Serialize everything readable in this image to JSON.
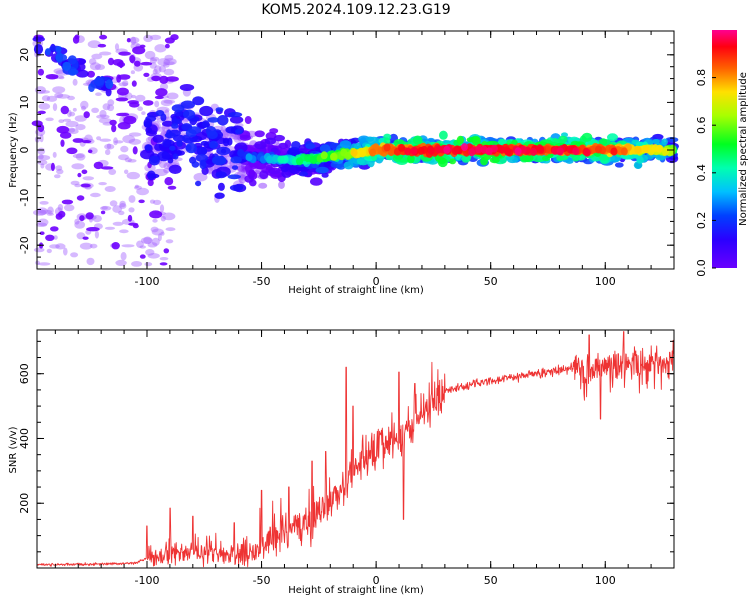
{
  "figure_title": "KOM5.2024.109.12.23.G19",
  "colors": {
    "snr_line": "#ee3333",
    "axes": "#000000"
  },
  "colormap_name": "rainbow",
  "chart_data": [
    {
      "type": "heatmap",
      "xlabel": "Height of straight line (km)",
      "ylabel": "Frequency (Hz)",
      "xlim": [
        -148,
        130
      ],
      "ylim": [
        -25,
        25
      ],
      "x_ticks": [
        -100,
        -50,
        0,
        50,
        100
      ],
      "x_tick_labels": [
        "-100",
        "-50",
        "0",
        "50",
        "100"
      ],
      "y_ticks": [
        -20,
        -10,
        0,
        10,
        20
      ],
      "y_tick_labels": [
        "-20",
        "-10",
        "0",
        "10",
        "20"
      ],
      "description_of_pattern": [
        {
          "x": -148,
          "freq": 22,
          "amp": 0.2
        },
        {
          "x": -140,
          "freq": 20,
          "amp": 0.25
        },
        {
          "x": -132,
          "freq": 17,
          "amp": 0.2
        },
        {
          "x": -120,
          "freq": 14,
          "amp": 0.2
        },
        {
          "x": -100,
          "freq": 2,
          "amp": 0.2
        },
        {
          "x": -80,
          "freq": 3,
          "amp": 0.2
        },
        {
          "x": -60,
          "freq": -1,
          "amp": 0.2
        },
        {
          "x": -45,
          "freq": -2,
          "amp": 0.3
        },
        {
          "x": -30,
          "freq": -2,
          "amp": 0.45
        },
        {
          "x": -15,
          "freq": -1,
          "amp": 0.55
        },
        {
          "x": 0,
          "freq": 0,
          "amp": 0.8
        },
        {
          "x": 25,
          "freq": 0,
          "amp": 0.9
        },
        {
          "x": 60,
          "freq": 0,
          "amp": 0.9
        },
        {
          "x": 100,
          "freq": 0,
          "amp": 0.85
        },
        {
          "x": 130,
          "freq": 0,
          "amp": 0.6
        }
      ],
      "colorbar": {
        "label": "Normalized spectral amplitude",
        "range": [
          0,
          1
        ],
        "ticks": [
          0.0,
          0.2,
          0.4,
          0.6,
          0.8
        ],
        "tick_labels": [
          "0.0",
          "0.2",
          "0.4",
          "0.6",
          "0.8"
        ]
      }
    },
    {
      "type": "line",
      "xlabel": "Height of straight line (km)",
      "ylabel": "SNR (v/v)",
      "xlim": [
        -148,
        130
      ],
      "ylim": [
        0,
        735
      ],
      "x_ticks": [
        -100,
        -50,
        0,
        50,
        100
      ],
      "x_tick_labels": [
        "-100",
        "-50",
        "0",
        "50",
        "100"
      ],
      "y_ticks": [
        200,
        400,
        600
      ],
      "y_tick_labels": [
        "200",
        "400",
        "600"
      ],
      "trend": [
        {
          "x": -148,
          "y": 10
        },
        {
          "x": -120,
          "y": 12
        },
        {
          "x": -105,
          "y": 15
        },
        {
          "x": -100,
          "y": 30
        },
        {
          "x": -85,
          "y": 45
        },
        {
          "x": -70,
          "y": 45
        },
        {
          "x": -60,
          "y": 25
        },
        {
          "x": -50,
          "y": 75
        },
        {
          "x": -40,
          "y": 110
        },
        {
          "x": -30,
          "y": 130
        },
        {
          "x": -20,
          "y": 200
        },
        {
          "x": -10,
          "y": 290
        },
        {
          "x": 0,
          "y": 360
        },
        {
          "x": 10,
          "y": 390
        },
        {
          "x": 20,
          "y": 470
        },
        {
          "x": 30,
          "y": 545
        },
        {
          "x": 40,
          "y": 565
        },
        {
          "x": 60,
          "y": 590
        },
        {
          "x": 80,
          "y": 610
        },
        {
          "x": 100,
          "y": 630
        },
        {
          "x": 130,
          "y": 645
        }
      ],
      "spikes": [
        {
          "x": -100,
          "y": 130
        },
        {
          "x": -90,
          "y": 185
        },
        {
          "x": -80,
          "y": 160
        },
        {
          "x": -62,
          "y": 140
        },
        {
          "x": -50,
          "y": 240
        },
        {
          "x": -38,
          "y": 250
        },
        {
          "x": -28,
          "y": 330
        },
        {
          "x": -22,
          "y": 360
        },
        {
          "x": -13,
          "y": 620
        },
        {
          "x": -10,
          "y": 500
        },
        {
          "x": 10,
          "y": 605
        },
        {
          "x": 12,
          "y": 150
        },
        {
          "x": 17,
          "y": 570
        },
        {
          "x": 93,
          "y": 720
        },
        {
          "x": 98,
          "y": 460
        },
        {
          "x": 108,
          "y": 730
        }
      ]
    }
  ]
}
